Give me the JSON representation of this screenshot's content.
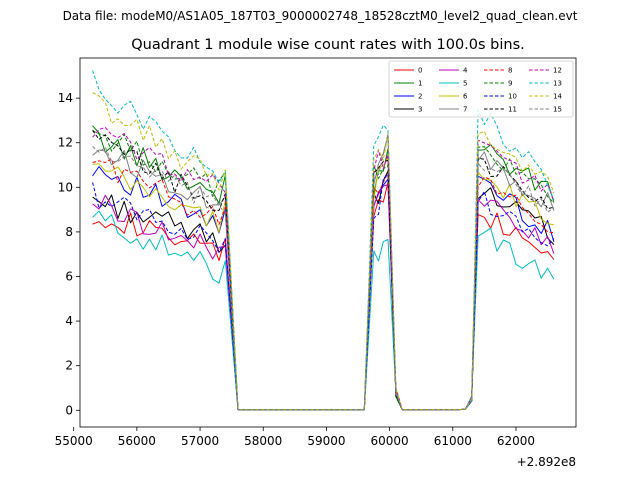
{
  "chart_data": {
    "type": "line",
    "suptitle": "Data file: modeM0/AS1A05_187T03_9000002748_18528cztM0_level2_quad_clean.evt",
    "title": "Quadrant 1 module wise count rates with 100.0s bins.",
    "xlabel": "",
    "ylabel": "",
    "x_offset_label": "+2.892e8",
    "xlim": [
      55100,
      62950
    ],
    "ylim": [
      -0.75,
      15.8
    ],
    "x_ticks": [
      55000,
      56000,
      57000,
      58000,
      59000,
      60000,
      61000,
      62000
    ],
    "y_ticks": [
      0,
      2,
      4,
      6,
      8,
      10,
      12,
      14
    ],
    "x_tick_labels": [
      "55000",
      "56000",
      "57000",
      "58000",
      "59000",
      "60000",
      "61000",
      "62000"
    ],
    "y_tick_labels": [
      "0",
      "2",
      "4",
      "6",
      "8",
      "10",
      "12",
      "14"
    ],
    "legend_position": "top-right",
    "segments": [
      {
        "x_start": 55300,
        "n": 22,
        "step": 100
      },
      {
        "x_start": 57600,
        "n": 21,
        "step": 100
      },
      {
        "x_start": 59750,
        "n": 4,
        "step": 75
      },
      {
        "x_start": 60100,
        "n": 11,
        "step": 100
      },
      {
        "x_start": 61200,
        "n": 15,
        "step": 100
      }
    ],
    "series": [
      {
        "name": "0",
        "color": "#ff0000",
        "dash": "solid",
        "level": 8.9,
        "end": 7.0,
        "peak": 9.8,
        "post": 9.0,
        "post_end": 6.9
      },
      {
        "name": "1",
        "color": "#008000",
        "dash": "solid",
        "level": 12.3,
        "end": 9.7,
        "peak": 11.3,
        "post": 12.0,
        "post_end": 9.6
      },
      {
        "name": "2",
        "color": "#0000ff",
        "dash": "solid",
        "level": 11.0,
        "end": 8.2,
        "peak": 10.6,
        "post": 10.5,
        "post_end": 7.8
      },
      {
        "name": "3",
        "color": "#000000",
        "dash": "solid",
        "level": 9.5,
        "end": 7.6,
        "peak": 10.1,
        "post": 10.0,
        "post_end": 7.9
      },
      {
        "name": "4",
        "color": "#bf00bf",
        "dash": "solid",
        "level": 9.4,
        "end": 7.0,
        "peak": 10.2,
        "post": 9.8,
        "post_end": 7.2
      },
      {
        "name": "5",
        "color": "#00bfbf",
        "dash": "solid",
        "level": 8.7,
        "end": 6.2,
        "peak": 7.8,
        "post": 8.1,
        "post_end": 5.8
      },
      {
        "name": "6",
        "color": "#bfbf00",
        "dash": "solid",
        "level": 10.9,
        "end": 8.4,
        "peak": 11.0,
        "post": 10.6,
        "post_end": 8.4
      },
      {
        "name": "7",
        "color": "#808080",
        "dash": "solid",
        "level": 11.8,
        "end": 9.3,
        "peak": 11.6,
        "post": 11.5,
        "post_end": 9.2
      },
      {
        "name": "8",
        "color": "#ff0000",
        "dash": "dashed",
        "level": 11.3,
        "end": 8.6,
        "peak": 10.4,
        "post": 10.4,
        "post_end": 8.1
      },
      {
        "name": "9",
        "color": "#008000",
        "dash": "dashed",
        "level": 12.5,
        "end": 9.9,
        "peak": 11.4,
        "post": 11.8,
        "post_end": 9.4
      },
      {
        "name": "10",
        "color": "#0000ff",
        "dash": "dashed",
        "level": 9.7,
        "end": 7.5,
        "peak": 10.0,
        "post": 9.6,
        "post_end": 7.3
      },
      {
        "name": "11",
        "color": "#000000",
        "dash": "dashed",
        "level": 12.2,
        "end": 9.2,
        "peak": 11.0,
        "post": 11.2,
        "post_end": 8.9
      },
      {
        "name": "12",
        "color": "#bf00bf",
        "dash": "dashed",
        "level": 12.6,
        "end": 10.0,
        "peak": 11.6,
        "post": 12.0,
        "post_end": 9.6
      },
      {
        "name": "13",
        "color": "#00bfbf",
        "dash": "dashed",
        "level": 14.7,
        "end": 10.5,
        "peak": 12.3,
        "post": 13.5,
        "post_end": 9.9
      },
      {
        "name": "14",
        "color": "#bfbf00",
        "dash": "dashed",
        "level": 13.9,
        "end": 10.2,
        "peak": 11.9,
        "post": 12.4,
        "post_end": 9.8
      },
      {
        "name": "15",
        "color": "#808080",
        "dash": "dashed",
        "level": 11.9,
        "end": 9.0,
        "peak": 11.5,
        "post": 11.3,
        "post_end": 9.0
      }
    ]
  }
}
